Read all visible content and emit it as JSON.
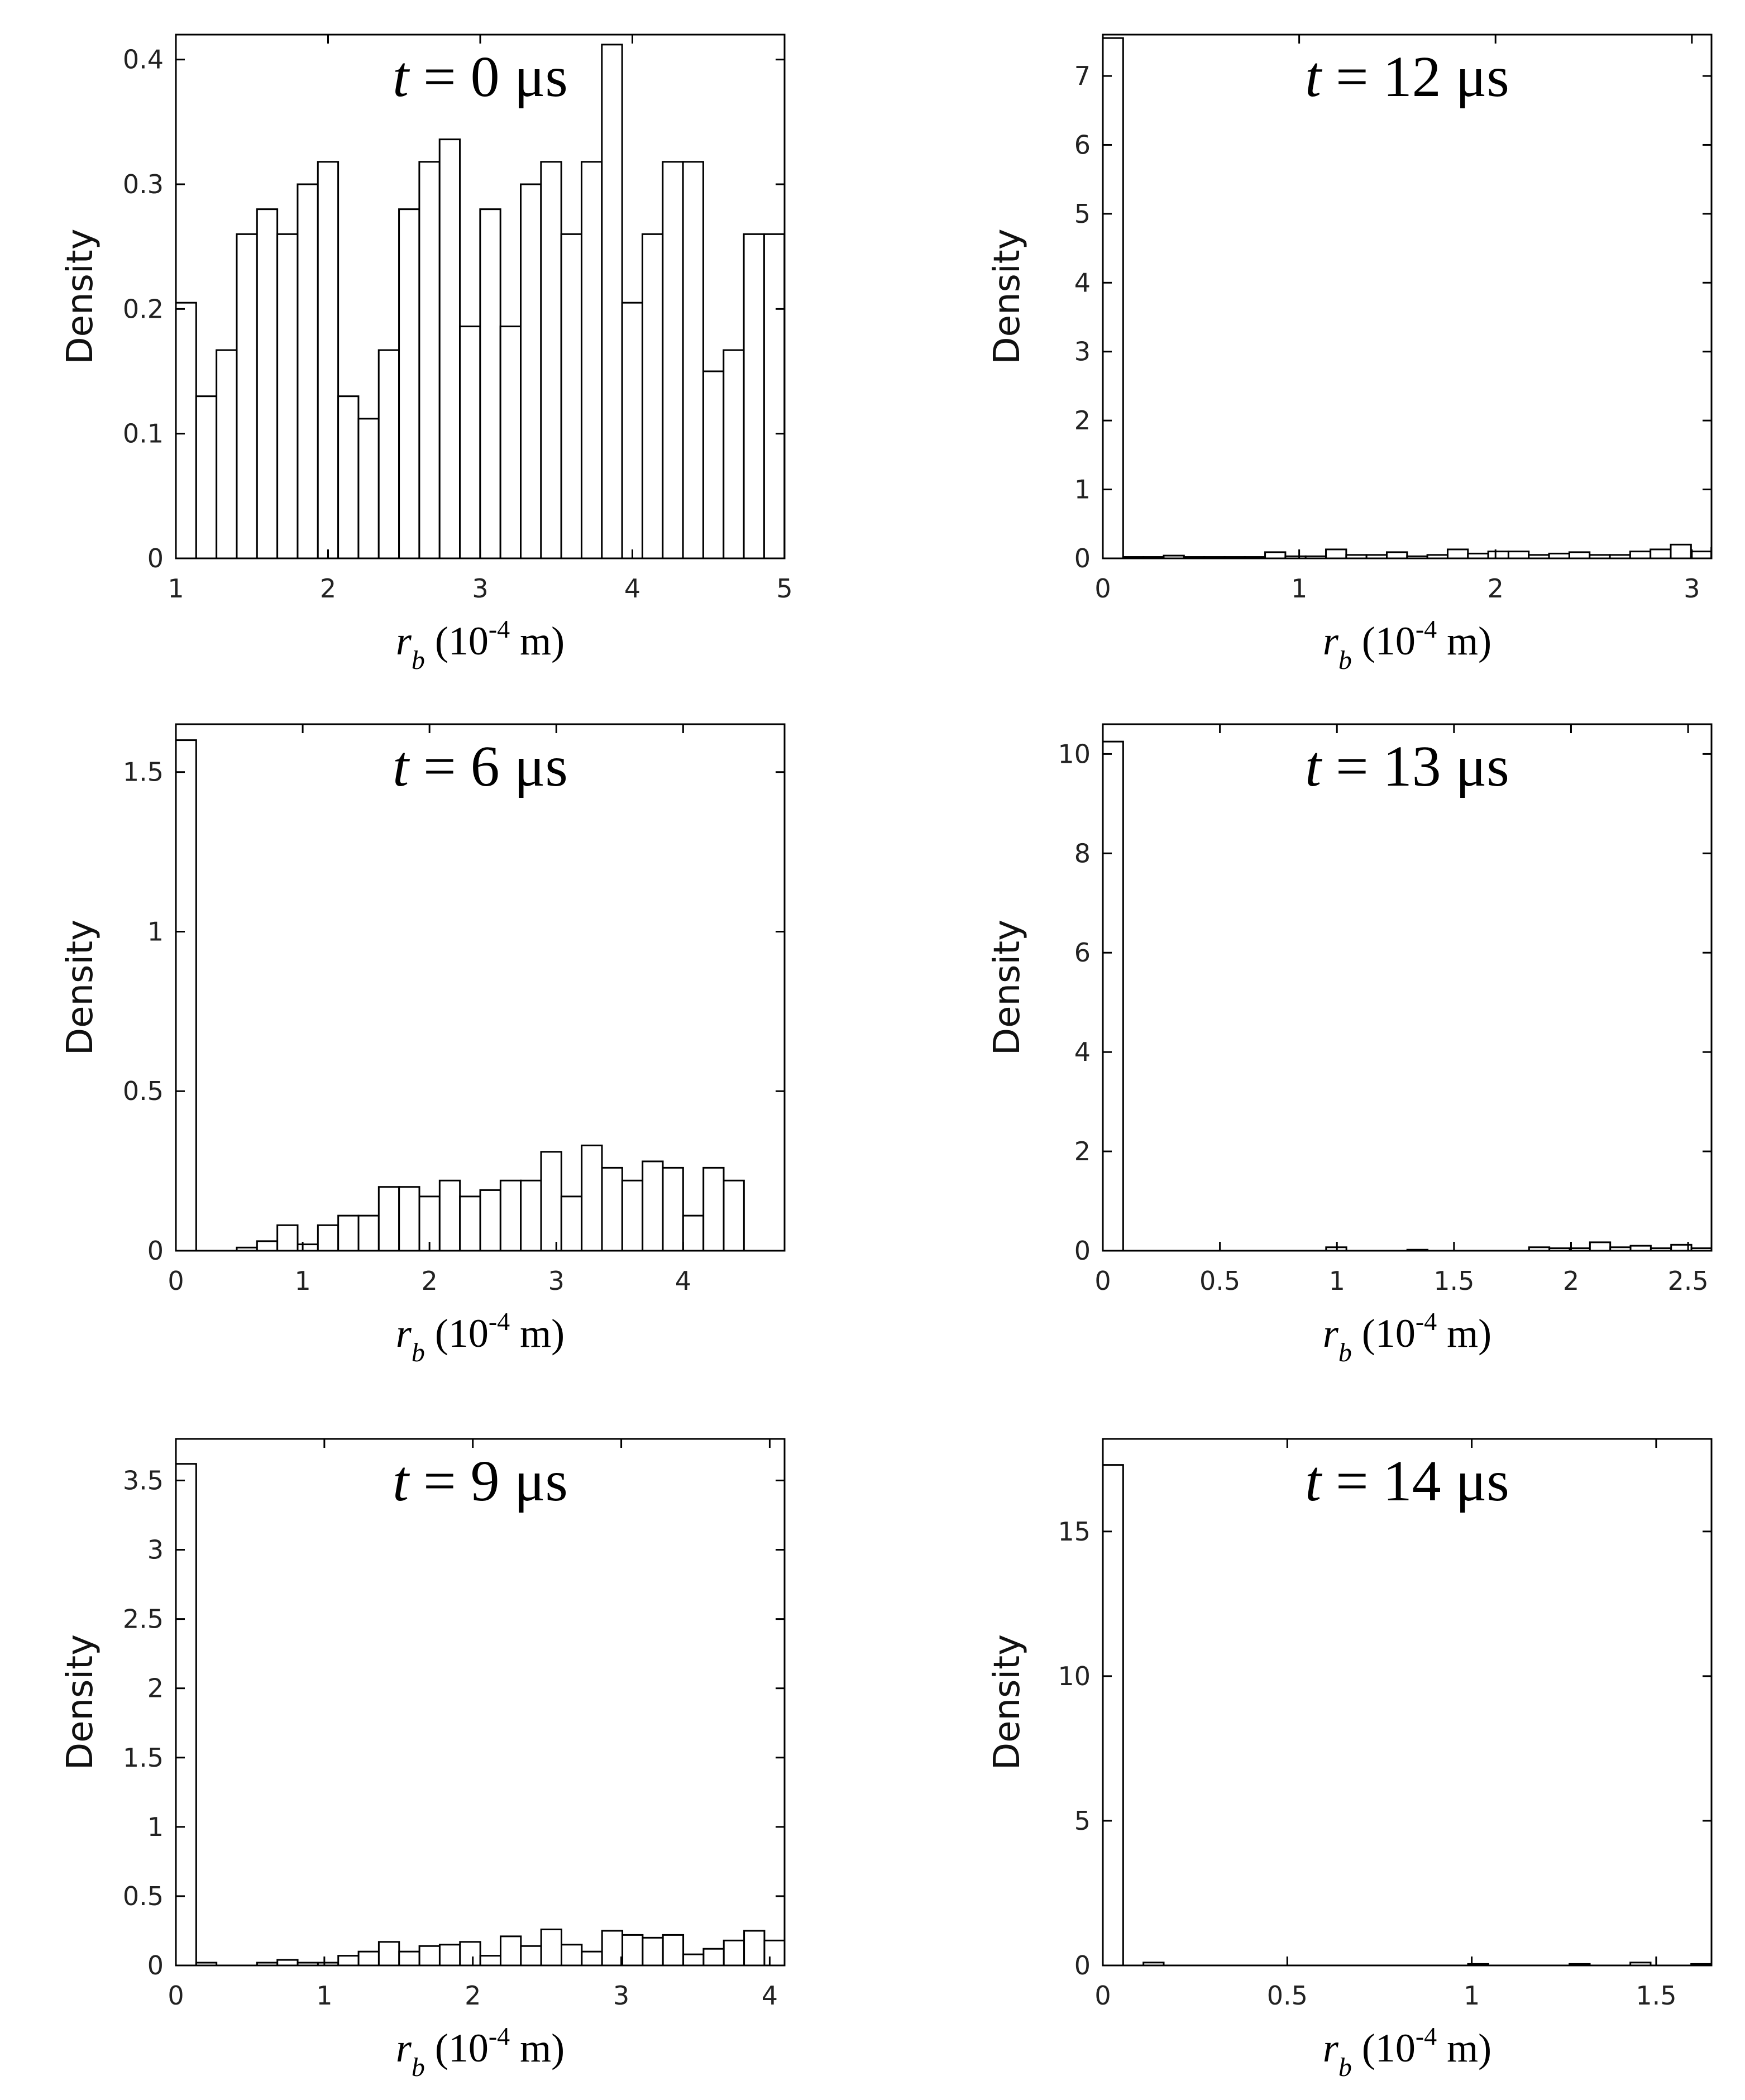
{
  "chart_data": [
    {
      "type": "bar",
      "title": {
        "var": "t",
        "rest": " = 0 μs"
      },
      "xlabel": {
        "var": "r",
        "sub": "b",
        "pre": " (10",
        "sup": "-4",
        "post": " m)"
      },
      "ylabel": "Density",
      "xlim": [
        1,
        5
      ],
      "ylim": [
        0,
        0.42
      ],
      "xticks": [
        {
          "v": 1,
          "label": "1"
        },
        {
          "v": 2,
          "label": "2"
        },
        {
          "v": 3,
          "label": "3"
        },
        {
          "v": 4,
          "label": "4"
        },
        {
          "v": 5,
          "label": "5"
        }
      ],
      "yticks": [
        {
          "v": 0,
          "label": "0"
        },
        {
          "v": 0.1,
          "label": "0.1"
        },
        {
          "v": 0.2,
          "label": "0.2"
        },
        {
          "v": 0.3,
          "label": "0.3"
        },
        {
          "v": 0.4,
          "label": "0.4"
        }
      ],
      "bin_start": 1.0,
      "bin_width": 0.1333,
      "values": [
        0.205,
        0.13,
        0.167,
        0.26,
        0.28,
        0.26,
        0.3,
        0.318,
        0.13,
        0.112,
        0.167,
        0.28,
        0.318,
        0.336,
        0.186,
        0.28,
        0.186,
        0.3,
        0.318,
        0.26,
        0.318,
        0.412,
        0.205,
        0.26,
        0.318,
        0.318,
        0.15,
        0.167,
        0.26,
        0.26
      ]
    },
    {
      "type": "bar",
      "title": {
        "var": "t",
        "rest": " = 12 μs"
      },
      "xlabel": {
        "var": "r",
        "sub": "b",
        "pre": " (10",
        "sup": "-4",
        "post": " m)"
      },
      "ylabel": "Density",
      "xlim": [
        0,
        3.1
      ],
      "ylim": [
        0,
        7.6
      ],
      "xticks": [
        {
          "v": 0,
          "label": "0"
        },
        {
          "v": 1,
          "label": "1"
        },
        {
          "v": 2,
          "label": "2"
        },
        {
          "v": 3,
          "label": "3"
        }
      ],
      "yticks": [
        {
          "v": 0,
          "label": "0"
        },
        {
          "v": 1,
          "label": "1"
        },
        {
          "v": 2,
          "label": "2"
        },
        {
          "v": 3,
          "label": "3"
        },
        {
          "v": 4,
          "label": "4"
        },
        {
          "v": 5,
          "label": "5"
        },
        {
          "v": 6,
          "label": "6"
        },
        {
          "v": 7,
          "label": "7"
        }
      ],
      "bin_start": 0.0,
      "bin_width": 0.1033,
      "values": [
        7.55,
        0.02,
        0.02,
        0.04,
        0.02,
        0.02,
        0.02,
        0.02,
        0.09,
        0.03,
        0.03,
        0.13,
        0.05,
        0.05,
        0.09,
        0.03,
        0.05,
        0.13,
        0.07,
        0.1,
        0.1,
        0.05,
        0.07,
        0.09,
        0.05,
        0.05,
        0.1,
        0.13,
        0.2,
        0.1,
        0.15
      ]
    },
    {
      "type": "bar",
      "title": {
        "var": "t",
        "rest": " = 6 μs"
      },
      "xlabel": {
        "var": "r",
        "sub": "b",
        "pre": " (10",
        "sup": "-4",
        "post": " m)"
      },
      "ylabel": "Density",
      "xlim": [
        0,
        4.8
      ],
      "ylim": [
        0,
        1.65
      ],
      "xticks": [
        {
          "v": 0,
          "label": "0"
        },
        {
          "v": 1,
          "label": "1"
        },
        {
          "v": 2,
          "label": "2"
        },
        {
          "v": 3,
          "label": "3"
        },
        {
          "v": 4,
          "label": "4"
        }
      ],
      "yticks": [
        {
          "v": 0,
          "label": "0"
        },
        {
          "v": 0.5,
          "label": "0.5"
        },
        {
          "v": 1,
          "label": "1"
        },
        {
          "v": 1.5,
          "label": "1.5"
        }
      ],
      "bin_start": 0.0,
      "bin_width": 0.16,
      "values": [
        1.6,
        0.0,
        0.0,
        0.01,
        0.03,
        0.08,
        0.02,
        0.08,
        0.11,
        0.11,
        0.2,
        0.2,
        0.17,
        0.22,
        0.17,
        0.19,
        0.22,
        0.22,
        0.31,
        0.17,
        0.33,
        0.26,
        0.22,
        0.28,
        0.26,
        0.11,
        0.26,
        0.22,
        0.0,
        0.0
      ]
    },
    {
      "type": "bar",
      "title": {
        "var": "t",
        "rest": " = 13 μs"
      },
      "xlabel": {
        "var": "r",
        "sub": "b",
        "pre": " (10",
        "sup": "-4",
        "post": " m)"
      },
      "ylabel": "Density",
      "xlim": [
        0,
        2.6
      ],
      "ylim": [
        0,
        10.6
      ],
      "xticks": [
        {
          "v": 0,
          "label": "0"
        },
        {
          "v": 0.5,
          "label": "0.5"
        },
        {
          "v": 1,
          "label": "1"
        },
        {
          "v": 1.5,
          "label": "1.5"
        },
        {
          "v": 2,
          "label": "2"
        },
        {
          "v": 2.5,
          "label": "2.5"
        }
      ],
      "yticks": [
        {
          "v": 0,
          "label": "0"
        },
        {
          "v": 2,
          "label": "2"
        },
        {
          "v": 4,
          "label": "4"
        },
        {
          "v": 6,
          "label": "6"
        },
        {
          "v": 8,
          "label": "8"
        },
        {
          "v": 10,
          "label": "10"
        }
      ],
      "bin_start": 0.0,
      "bin_width": 0.0867,
      "values": [
        10.25,
        0.0,
        0.0,
        0.0,
        0.0,
        0.0,
        0.0,
        0.0,
        0.0,
        0.0,
        0.0,
        0.07,
        0.0,
        0.0,
        0.0,
        0.02,
        0.0,
        0.0,
        0.0,
        0.0,
        0.0,
        0.07,
        0.05,
        0.05,
        0.17,
        0.07,
        0.1,
        0.05,
        0.12,
        0.05
      ]
    },
    {
      "type": "bar",
      "title": {
        "var": "t",
        "rest": " = 9 μs"
      },
      "xlabel": {
        "var": "r",
        "sub": "b",
        "pre": " (10",
        "sup": "-4",
        "post": " m)"
      },
      "ylabel": "Density",
      "xlim": [
        0,
        4.1
      ],
      "ylim": [
        0,
        3.8
      ],
      "xticks": [
        {
          "v": 0,
          "label": "0"
        },
        {
          "v": 1,
          "label": "1"
        },
        {
          "v": 2,
          "label": "2"
        },
        {
          "v": 3,
          "label": "3"
        },
        {
          "v": 4,
          "label": "4"
        }
      ],
      "yticks": [
        {
          "v": 0,
          "label": "0"
        },
        {
          "v": 0.5,
          "label": "0.5"
        },
        {
          "v": 1,
          "label": "1"
        },
        {
          "v": 1.5,
          "label": "1.5"
        },
        {
          "v": 2,
          "label": "2"
        },
        {
          "v": 2.5,
          "label": "2.5"
        },
        {
          "v": 3,
          "label": "3"
        },
        {
          "v": 3.5,
          "label": "3.5"
        }
      ],
      "bin_start": 0.0,
      "bin_width": 0.1367,
      "values": [
        3.62,
        0.02,
        0.0,
        0.0,
        0.02,
        0.04,
        0.02,
        0.02,
        0.07,
        0.1,
        0.17,
        0.1,
        0.14,
        0.15,
        0.17,
        0.07,
        0.21,
        0.14,
        0.26,
        0.15,
        0.1,
        0.25,
        0.22,
        0.2,
        0.22,
        0.08,
        0.12,
        0.18,
        0.25,
        0.18
      ]
    },
    {
      "type": "bar",
      "title": {
        "var": "t",
        "rest": " = 14 μs"
      },
      "xlabel": {
        "var": "r",
        "sub": "b",
        "pre": " (10",
        "sup": "-4",
        "post": " m)"
      },
      "ylabel": "Density",
      "xlim": [
        0,
        1.65
      ],
      "ylim": [
        0,
        18.2
      ],
      "xticks": [
        {
          "v": 0,
          "label": "0"
        },
        {
          "v": 0.5,
          "label": "0.5"
        },
        {
          "v": 1,
          "label": "1"
        },
        {
          "v": 1.5,
          "label": "1.5"
        }
      ],
      "yticks": [
        {
          "v": 0,
          "label": "0"
        },
        {
          "v": 5,
          "label": "5"
        },
        {
          "v": 10,
          "label": "10"
        },
        {
          "v": 15,
          "label": "15"
        }
      ],
      "bin_start": 0.0,
      "bin_width": 0.055,
      "values": [
        17.3,
        0.0,
        0.1,
        0.0,
        0.0,
        0.0,
        0.0,
        0.0,
        0.0,
        0.0,
        0.0,
        0.0,
        0.0,
        0.0,
        0.0,
        0.0,
        0.0,
        0.0,
        0.05,
        0.0,
        0.0,
        0.0,
        0.0,
        0.05,
        0.0,
        0.0,
        0.1,
        0.0,
        0.0,
        0.05
      ]
    }
  ]
}
